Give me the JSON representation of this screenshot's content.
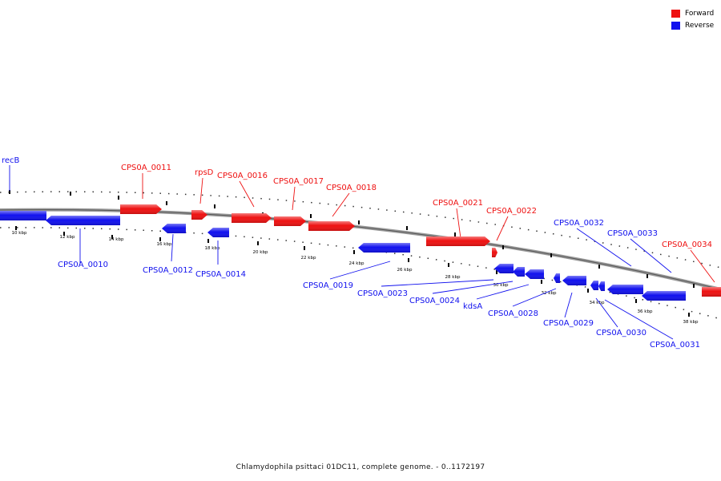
{
  "colors": {
    "forward": "#ee1111",
    "reverse": "#1111ee",
    "backbone": "#888888"
  },
  "legend": [
    {
      "label": "Forward",
      "color": "#ee1111"
    },
    {
      "label": "Reverse",
      "color": "#1111ee"
    }
  ],
  "caption": "Chlamydophila psittaci 01DC11, complete genome. - 0..1172197",
  "ticks": [
    "10 kbp",
    "12 kbp",
    "14 kbp",
    "16 kbp",
    "18 kbp",
    "20 kbp",
    "22 kbp",
    "24 kbp",
    "26 kbp",
    "28 kbp",
    "30 kbp",
    "32 kbp",
    "34 kbp",
    "36 kbp",
    "38 kbp"
  ],
  "genes": [
    {
      "label": "recB",
      "strand": "reverse"
    },
    {
      "label": "CPS0A_0010",
      "strand": "reverse"
    },
    {
      "label": "CPS0A_0011",
      "strand": "forward"
    },
    {
      "label": "CPS0A_0012",
      "strand": "reverse"
    },
    {
      "label": "rpsD",
      "strand": "forward"
    },
    {
      "label": "CPS0A_0014",
      "strand": "reverse"
    },
    {
      "label": "CPS0A_0016",
      "strand": "forward"
    },
    {
      "label": "CPS0A_0017",
      "strand": "forward"
    },
    {
      "label": "CPS0A_0018",
      "strand": "forward"
    },
    {
      "label": "CPS0A_0019",
      "strand": "reverse"
    },
    {
      "label": "CPS0A_0021",
      "strand": "forward"
    },
    {
      "label": "CPS0A_0022",
      "strand": "forward"
    },
    {
      "label": "CPS0A_0023",
      "strand": "reverse"
    },
    {
      "label": "CPS0A_0024",
      "strand": "reverse"
    },
    {
      "label": "kdsA",
      "strand": "reverse"
    },
    {
      "label": "CPS0A_0028",
      "strand": "reverse"
    },
    {
      "label": "CPS0A_0029",
      "strand": "reverse"
    },
    {
      "label": "CPS0A_0030",
      "strand": "reverse"
    },
    {
      "label": "CPS0A_0031",
      "strand": "reverse"
    },
    {
      "label": "CPS0A_0032",
      "strand": "reverse"
    },
    {
      "label": "CPS0A_0033",
      "strand": "reverse"
    },
    {
      "label": "CPS0A_0034",
      "strand": "forward"
    }
  ]
}
